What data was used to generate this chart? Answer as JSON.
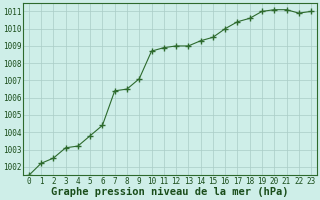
{
  "x": [
    0,
    1,
    2,
    3,
    4,
    5,
    6,
    7,
    8,
    9,
    10,
    11,
    12,
    13,
    14,
    15,
    16,
    17,
    18,
    19,
    20,
    21,
    22,
    23
  ],
  "y": [
    1001.5,
    1002.2,
    1002.5,
    1003.1,
    1003.2,
    1003.8,
    1004.4,
    1006.4,
    1006.5,
    1007.1,
    1008.7,
    1008.9,
    1009.0,
    1009.0,
    1009.3,
    1009.5,
    1010.0,
    1010.4,
    1010.6,
    1011.0,
    1011.1,
    1011.1,
    1010.9,
    1011.0
  ],
  "ylim": [
    1001.5,
    1011.5
  ],
  "xlim": [
    -0.5,
    23.5
  ],
  "yticks": [
    1002,
    1003,
    1004,
    1005,
    1006,
    1007,
    1008,
    1009,
    1010,
    1011
  ],
  "xticks": [
    0,
    1,
    2,
    3,
    4,
    5,
    6,
    7,
    8,
    9,
    10,
    11,
    12,
    13,
    14,
    15,
    16,
    17,
    18,
    19,
    20,
    21,
    22,
    23
  ],
  "xlabel": "Graphe pression niveau de la mer (hPa)",
  "line_color": "#2d6a2d",
  "marker_color": "#2d6a2d",
  "bg_color": "#ceeee8",
  "grid_color": "#aaccc6",
  "axis_color": "#2d6a2d",
  "label_color": "#1a4d1a",
  "tick_label_fontsize": 5.5,
  "xlabel_fontsize": 7.5
}
